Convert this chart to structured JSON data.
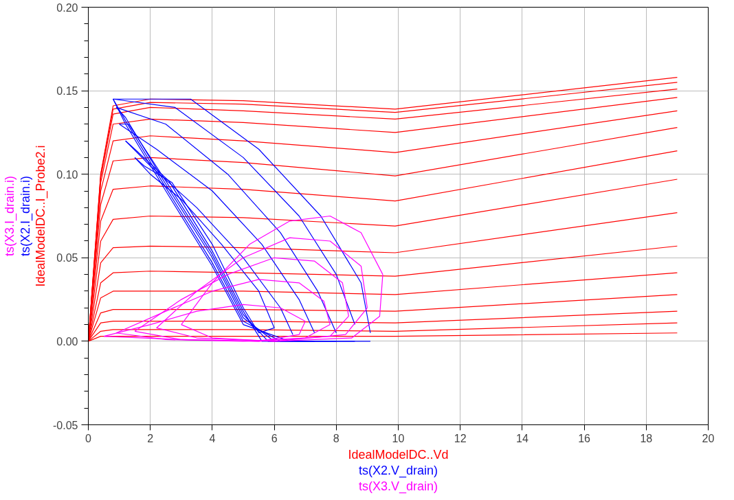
{
  "chart_data": {
    "type": "line",
    "xlabel": "IdealModelDC..Vd",
    "ylabel": "IdealModelDC..I_Probe2.i",
    "annotations": [
      "ts(X2.I_drain.i)",
      "ts(X3.I_drain.i)",
      "ts(X2.V_drain)",
      "ts(X3.V_drain)"
    ],
    "xlim": [
      0,
      20
    ],
    "xticks": [
      0,
      2,
      4,
      6,
      8,
      10,
      12,
      14,
      16,
      18,
      20
    ],
    "ylim": [
      -0.05,
      0.2
    ],
    "yticks": [
      {
        "value": -0.05,
        "label": "-0.05"
      },
      {
        "value": 0,
        "label": "0.00"
      },
      {
        "value": 0.05,
        "label": "0.05"
      },
      {
        "value": 0.1,
        "label": "0.10"
      },
      {
        "value": 0.15,
        "label": "0.15"
      },
      {
        "value": 0.2,
        "label": "0.20"
      }
    ],
    "grid": true,
    "series": [
      {
        "color": "#ff0000",
        "x": [
          0,
          0.4,
          0.8,
          2,
          5,
          9.9,
          19
        ],
        "values": [
          0,
          0.1,
          0.141,
          0.145,
          0.144,
          0.139,
          0.158
        ]
      },
      {
        "color": "#ff0000",
        "x": [
          0,
          0.4,
          0.8,
          2,
          5,
          9.9,
          19
        ],
        "values": [
          0,
          0.1,
          0.139,
          0.143,
          0.142,
          0.137,
          0.155
        ]
      },
      {
        "color": "#ff0000",
        "x": [
          0,
          0.4,
          0.8,
          2,
          5,
          9.9,
          19
        ],
        "values": [
          0,
          0.098,
          0.136,
          0.14,
          0.138,
          0.133,
          0.151
        ]
      },
      {
        "color": "#ff0000",
        "x": [
          0,
          0.4,
          0.8,
          2,
          5,
          9.9,
          19
        ],
        "values": [
          0,
          0.095,
          0.13,
          0.133,
          0.131,
          0.125,
          0.146
        ]
      },
      {
        "color": "#ff0000",
        "x": [
          0,
          0.4,
          0.8,
          2,
          5,
          9.9,
          19
        ],
        "values": [
          0,
          0.09,
          0.12,
          0.123,
          0.12,
          0.113,
          0.138
        ]
      },
      {
        "color": "#ff0000",
        "x": [
          0,
          0.4,
          0.8,
          2,
          5,
          9.9,
          19
        ],
        "values": [
          0,
          0.082,
          0.108,
          0.11,
          0.107,
          0.099,
          0.128
        ]
      },
      {
        "color": "#ff0000",
        "x": [
          0,
          0.4,
          0.8,
          2,
          5,
          9.9,
          19
        ],
        "values": [
          0,
          0.072,
          0.091,
          0.093,
          0.091,
          0.084,
          0.114
        ]
      },
      {
        "color": "#ff0000",
        "x": [
          0,
          0.4,
          0.8,
          2,
          5,
          9.9,
          19
        ],
        "values": [
          0,
          0.06,
          0.073,
          0.075,
          0.074,
          0.069,
          0.097
        ]
      },
      {
        "color": "#ff0000",
        "x": [
          0,
          0.4,
          0.8,
          2,
          5,
          9.9,
          19
        ],
        "values": [
          0,
          0.047,
          0.056,
          0.057,
          0.056,
          0.053,
          0.077
        ]
      },
      {
        "color": "#ff0000",
        "x": [
          0,
          0.4,
          0.8,
          2,
          5,
          9.9,
          19
        ],
        "values": [
          0,
          0.035,
          0.041,
          0.042,
          0.041,
          0.039,
          0.057
        ]
      },
      {
        "color": "#ff0000",
        "x": [
          0,
          0.4,
          0.8,
          2,
          5,
          9.9,
          19
        ],
        "values": [
          0,
          0.026,
          0.03,
          0.03,
          0.03,
          0.028,
          0.041
        ]
      },
      {
        "color": "#ff0000",
        "x": [
          0,
          0.4,
          0.8,
          2,
          5,
          9.9,
          19
        ],
        "values": [
          0,
          0.017,
          0.019,
          0.019,
          0.019,
          0.018,
          0.028
        ]
      },
      {
        "color": "#ff0000",
        "x": [
          0,
          0.4,
          0.8,
          2,
          5,
          9.9,
          19
        ],
        "values": [
          0,
          0.011,
          0.012,
          0.012,
          0.012,
          0.011,
          0.018
        ]
      },
      {
        "color": "#ff0000",
        "x": [
          0,
          0.4,
          0.8,
          2,
          5,
          9.9,
          19
        ],
        "values": [
          0,
          0.006,
          0.007,
          0.007,
          0.007,
          0.006,
          0.011
        ]
      },
      {
        "color": "#ff0000",
        "x": [
          0,
          0.4,
          0.8,
          2,
          5,
          9.9,
          19
        ],
        "values": [
          0,
          0.003,
          0.003,
          0.003,
          0.003,
          0.003,
          0.005
        ]
      },
      {
        "color": "#0000ff",
        "x": [
          0.8,
          3.3,
          5.5,
          7.5,
          8.8,
          9.1
        ],
        "values": [
          0.145,
          0.145,
          0.115,
          0.075,
          0.035,
          0.005
        ]
      },
      {
        "color": "#0000ff",
        "x": [
          0.8,
          1.2,
          2.5,
          4,
          5,
          6.5,
          9.1
        ],
        "values": [
          0.145,
          0.13,
          0.09,
          0.045,
          0.01,
          0,
          0
        ]
      },
      {
        "color": "#0000ff",
        "x": [
          0.8,
          2.8,
          5,
          6.8,
          8,
          8.6
        ],
        "values": [
          0.145,
          0.14,
          0.11,
          0.075,
          0.04,
          0.01
        ]
      },
      {
        "color": "#0000ff",
        "x": [
          0.8,
          1.2,
          2.5,
          4,
          5,
          6.2,
          8.6
        ],
        "values": [
          0.145,
          0.132,
          0.092,
          0.047,
          0.012,
          0,
          0
        ]
      },
      {
        "color": "#0000ff",
        "x": [
          0.9,
          2.5,
          4.5,
          6.2,
          7.4,
          8
        ],
        "values": [
          0.14,
          0.13,
          0.1,
          0.065,
          0.03,
          0.005
        ]
      },
      {
        "color": "#0000ff",
        "x": [
          0.9,
          1.2,
          2.5,
          4,
          5,
          6,
          8
        ],
        "values": [
          0.14,
          0.134,
          0.094,
          0.05,
          0.014,
          0,
          0
        ]
      },
      {
        "color": "#0000ff",
        "x": [
          1,
          2.2,
          4,
          5.6,
          6.8,
          7.3
        ],
        "values": [
          0.13,
          0.115,
          0.09,
          0.058,
          0.025,
          0.005
        ]
      },
      {
        "color": "#0000ff",
        "x": [
          1,
          1.3,
          2.5,
          4,
          5,
          5.8,
          7.3
        ],
        "values": [
          0.13,
          0.13,
          0.096,
          0.052,
          0.016,
          0,
          0
        ]
      },
      {
        "color": "#0000ff",
        "x": [
          1.2,
          2,
          3.5,
          5,
          6.2,
          6.6
        ],
        "values": [
          0.12,
          0.105,
          0.08,
          0.05,
          0.02,
          0.004
        ]
      },
      {
        "color": "#0000ff",
        "x": [
          1.2,
          1.5,
          2.6,
          4,
          5,
          5.6,
          6.6
        ],
        "values": [
          0.12,
          0.115,
          0.096,
          0.054,
          0.018,
          0,
          0
        ]
      },
      {
        "color": "#0000ff",
        "x": [
          1.5,
          2,
          3,
          4.3,
          5.5,
          6
        ],
        "values": [
          0.11,
          0.1,
          0.085,
          0.058,
          0.03,
          0.008
        ]
      },
      {
        "color": "#0000ff",
        "x": [
          1.5,
          1.8,
          2.7,
          4,
          5,
          5.5,
          6
        ],
        "values": [
          0.11,
          0.105,
          0.095,
          0.058,
          0.02,
          0.005,
          0.008
        ]
      },
      {
        "color": "#ff00ff",
        "x": [
          3,
          4,
          5.2,
          6.5,
          7.8,
          8.8,
          9.5
        ],
        "values": [
          0.01,
          0.035,
          0.058,
          0.072,
          0.075,
          0.065,
          0.04
        ]
      },
      {
        "color": "#ff00ff",
        "x": [
          3,
          4,
          6,
          8.5,
          9.4,
          9.5
        ],
        "values": [
          0.01,
          0.002,
          0,
          0.002,
          0.015,
          0.04
        ]
      },
      {
        "color": "#ff00ff",
        "x": [
          2.2,
          3.5,
          5,
          6.5,
          7.8,
          8.8,
          9
        ],
        "values": [
          0.008,
          0.03,
          0.05,
          0.062,
          0.06,
          0.045,
          0.02
        ]
      },
      {
        "color": "#ff00ff",
        "x": [
          2.2,
          3.5,
          6,
          8.3,
          9
        ],
        "values": [
          0.008,
          0.002,
          0,
          0.004,
          0.02
        ]
      },
      {
        "color": "#ff00ff",
        "x": [
          1.5,
          3,
          4.5,
          6,
          7.3,
          8.2,
          8.4
        ],
        "values": [
          0.006,
          0.025,
          0.04,
          0.05,
          0.048,
          0.035,
          0.015
        ]
      },
      {
        "color": "#ff00ff",
        "x": [
          1.5,
          3,
          5.5,
          7.8,
          8.4
        ],
        "values": [
          0.006,
          0.001,
          0,
          0.003,
          0.015
        ]
      },
      {
        "color": "#ff00ff",
        "x": [
          0.9,
          2.5,
          4,
          5.5,
          6.8,
          7.6,
          7.8
        ],
        "values": [
          0.005,
          0.018,
          0.03,
          0.037,
          0.035,
          0.024,
          0.01
        ]
      },
      {
        "color": "#ff00ff",
        "x": [
          0.9,
          2.5,
          5,
          7,
          7.8
        ],
        "values": [
          0.005,
          0.001,
          0,
          0.002,
          0.01
        ]
      },
      {
        "color": "#ff00ff",
        "x": [
          0.5,
          2,
          3.5,
          5,
          6.2,
          7
        ],
        "values": [
          0.003,
          0.01,
          0.018,
          0.022,
          0.02,
          0.012
        ]
      },
      {
        "color": "#ff00ff",
        "x": [
          0.5,
          3,
          5.5,
          6.8,
          7
        ],
        "values": [
          0.003,
          0.001,
          0,
          0.004,
          0.012
        ]
      }
    ]
  }
}
